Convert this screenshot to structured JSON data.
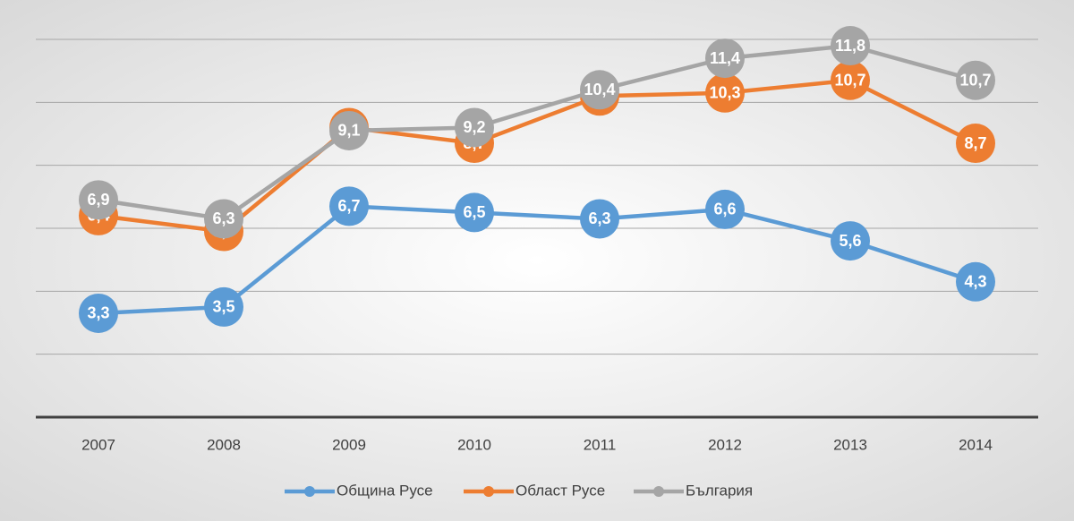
{
  "chart_data": {
    "type": "line",
    "categories": [
      "2007",
      "2008",
      "2009",
      "2010",
      "2011",
      "2012",
      "2013",
      "2014"
    ],
    "series": [
      {
        "name": "Община Русе",
        "color": "#5b9bd5",
        "values": [
          3.3,
          3.5,
          6.7,
          6.5,
          6.3,
          6.6,
          5.6,
          4.3
        ],
        "value_labels": [
          "3,3",
          "3,5",
          "6,7",
          "6,5",
          "6,3",
          "6,6",
          "5,6",
          "4,3"
        ]
      },
      {
        "name": "Област Русе",
        "color": "#ed7d31",
        "values": [
          6.4,
          5.9,
          9.2,
          8.7,
          10.2,
          10.3,
          10.7,
          8.7
        ],
        "value_labels": [
          "6,4",
          "5,9",
          "9,2",
          "8,7",
          "10,2",
          "10,3",
          "10,7",
          "8,7"
        ]
      },
      {
        "name": "България",
        "color": "#a5a5a5",
        "values": [
          6.9,
          6.3,
          9.1,
          9.2,
          10.4,
          11.4,
          11.8,
          10.7
        ],
        "value_labels": [
          "6,9",
          "6,3",
          "9,1",
          "9,2",
          "10,4",
          "11,4",
          "11,8",
          "10,7"
        ]
      }
    ],
    "ylim": [
      0,
      12
    ],
    "yticks": [
      0,
      2,
      4,
      6,
      8,
      10,
      12
    ],
    "grid": true,
    "legend": "bottom"
  }
}
